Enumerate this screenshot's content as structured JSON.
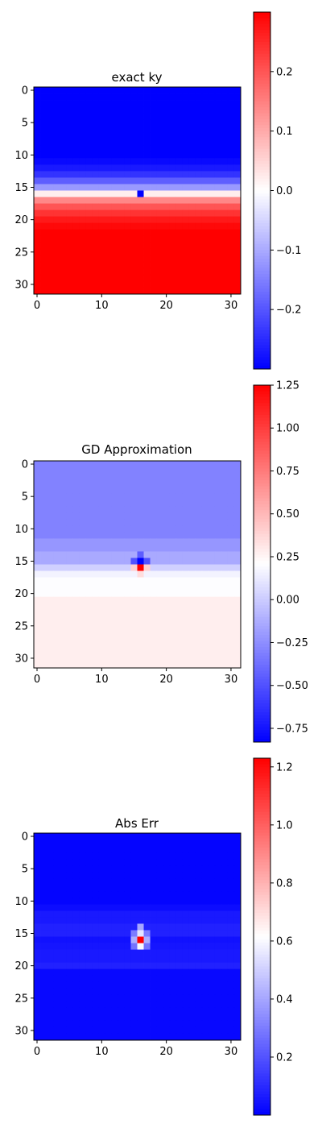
{
  "figure": {
    "background": "#ffffff"
  },
  "chart_data": [
    {
      "type": "heatmap",
      "title": "exact ky",
      "grid": false,
      "colormap": "bwr",
      "shape": [
        32,
        32
      ],
      "x_ticks": [
        0,
        10,
        20,
        30
      ],
      "y_ticks": [
        0,
        5,
        10,
        15,
        20,
        25,
        30
      ],
      "colorbar": {
        "min": -0.3,
        "max": 0.3,
        "ticks": [
          -0.2,
          -0.1,
          0.0,
          0.1,
          0.2
        ],
        "tick_labels": [
          "−0.2",
          "−0.1",
          "0.0",
          "0.1",
          "0.2"
        ]
      },
      "row_profile": [
        -0.3,
        -0.3,
        -0.3,
        -0.3,
        -0.3,
        -0.3,
        -0.3,
        -0.3,
        -0.3,
        -0.3,
        -0.3,
        -0.29,
        -0.27,
        -0.24,
        -0.19,
        -0.12,
        0.02,
        0.14,
        0.2,
        0.24,
        0.27,
        0.29,
        0.3,
        0.3,
        0.3,
        0.3,
        0.3,
        0.3,
        0.3,
        0.3,
        0.3,
        0.3
      ],
      "anomalies": [
        {
          "row": 16,
          "col": 16,
          "value": -0.3
        }
      ]
    },
    {
      "type": "heatmap",
      "title": "GD Approximation",
      "grid": false,
      "colormap": "bwr",
      "shape": [
        32,
        32
      ],
      "x_ticks": [
        0,
        10,
        20,
        30
      ],
      "y_ticks": [
        0,
        5,
        10,
        15,
        20,
        25,
        30
      ],
      "colorbar": {
        "min": -0.83,
        "max": 1.25,
        "ticks": [
          -0.75,
          -0.5,
          -0.25,
          0.0,
          0.25,
          0.5,
          0.75,
          1.0,
          1.25
        ],
        "tick_labels": [
          "−0.75",
          "−0.50",
          "−0.25",
          "0.00",
          "0.25",
          "0.50",
          "0.75",
          "1.00",
          "1.25"
        ]
      },
      "row_profile": [
        -0.3,
        -0.3,
        -0.3,
        -0.3,
        -0.3,
        -0.3,
        -0.3,
        -0.3,
        -0.3,
        -0.3,
        -0.3,
        -0.3,
        -0.22,
        -0.22,
        -0.14,
        -0.14,
        0.02,
        0.16,
        0.2,
        0.2,
        0.2,
        0.28,
        0.28,
        0.28,
        0.28,
        0.28,
        0.28,
        0.28,
        0.28,
        0.28,
        0.28,
        0.28
      ],
      "anomalies": [
        {
          "row": 15,
          "col": 16,
          "value": -0.83
        },
        {
          "row": 16,
          "col": 16,
          "value": 1.25
        },
        {
          "row": 14,
          "col": 16,
          "value": -0.45
        },
        {
          "row": 15,
          "col": 15,
          "value": -0.5
        },
        {
          "row": 15,
          "col": 17,
          "value": -0.5
        },
        {
          "row": 16,
          "col": 15,
          "value": 0.4
        },
        {
          "row": 16,
          "col": 17,
          "value": 0.4
        },
        {
          "row": 17,
          "col": 16,
          "value": 0.35
        }
      ]
    },
    {
      "type": "heatmap",
      "title": "Abs Err",
      "grid": false,
      "colormap": "bwr",
      "shape": [
        32,
        32
      ],
      "x_ticks": [
        0,
        10,
        20,
        30
      ],
      "y_ticks": [
        0,
        5,
        10,
        15,
        20,
        25,
        30
      ],
      "colorbar": {
        "min": 0.0,
        "max": 1.23,
        "ticks": [
          0.2,
          0.4,
          0.6,
          0.8,
          1.0,
          1.2
        ],
        "tick_labels": [
          "0.2",
          "0.4",
          "0.6",
          "0.8",
          "1.0",
          "1.2"
        ]
      },
      "row_profile": [
        0.01,
        0.01,
        0.01,
        0.01,
        0.01,
        0.01,
        0.01,
        0.01,
        0.01,
        0.01,
        0.01,
        0.03,
        0.06,
        0.06,
        0.08,
        0.08,
        0.04,
        0.05,
        0.06,
        0.06,
        0.08,
        0.02,
        0.02,
        0.02,
        0.02,
        0.02,
        0.02,
        0.02,
        0.02,
        0.02,
        0.02,
        0.02
      ],
      "anomalies": [
        {
          "row": 16,
          "col": 16,
          "value": 1.23
        },
        {
          "row": 15,
          "col": 16,
          "value": 0.55
        },
        {
          "row": 17,
          "col": 16,
          "value": 0.6
        },
        {
          "row": 14,
          "col": 16,
          "value": 0.4
        },
        {
          "row": 16,
          "col": 15,
          "value": 0.42
        },
        {
          "row": 16,
          "col": 17,
          "value": 0.42
        },
        {
          "row": 15,
          "col": 15,
          "value": 0.3
        },
        {
          "row": 15,
          "col": 17,
          "value": 0.3
        },
        {
          "row": 17,
          "col": 15,
          "value": 0.28
        },
        {
          "row": 17,
          "col": 17,
          "value": 0.28
        }
      ]
    }
  ]
}
